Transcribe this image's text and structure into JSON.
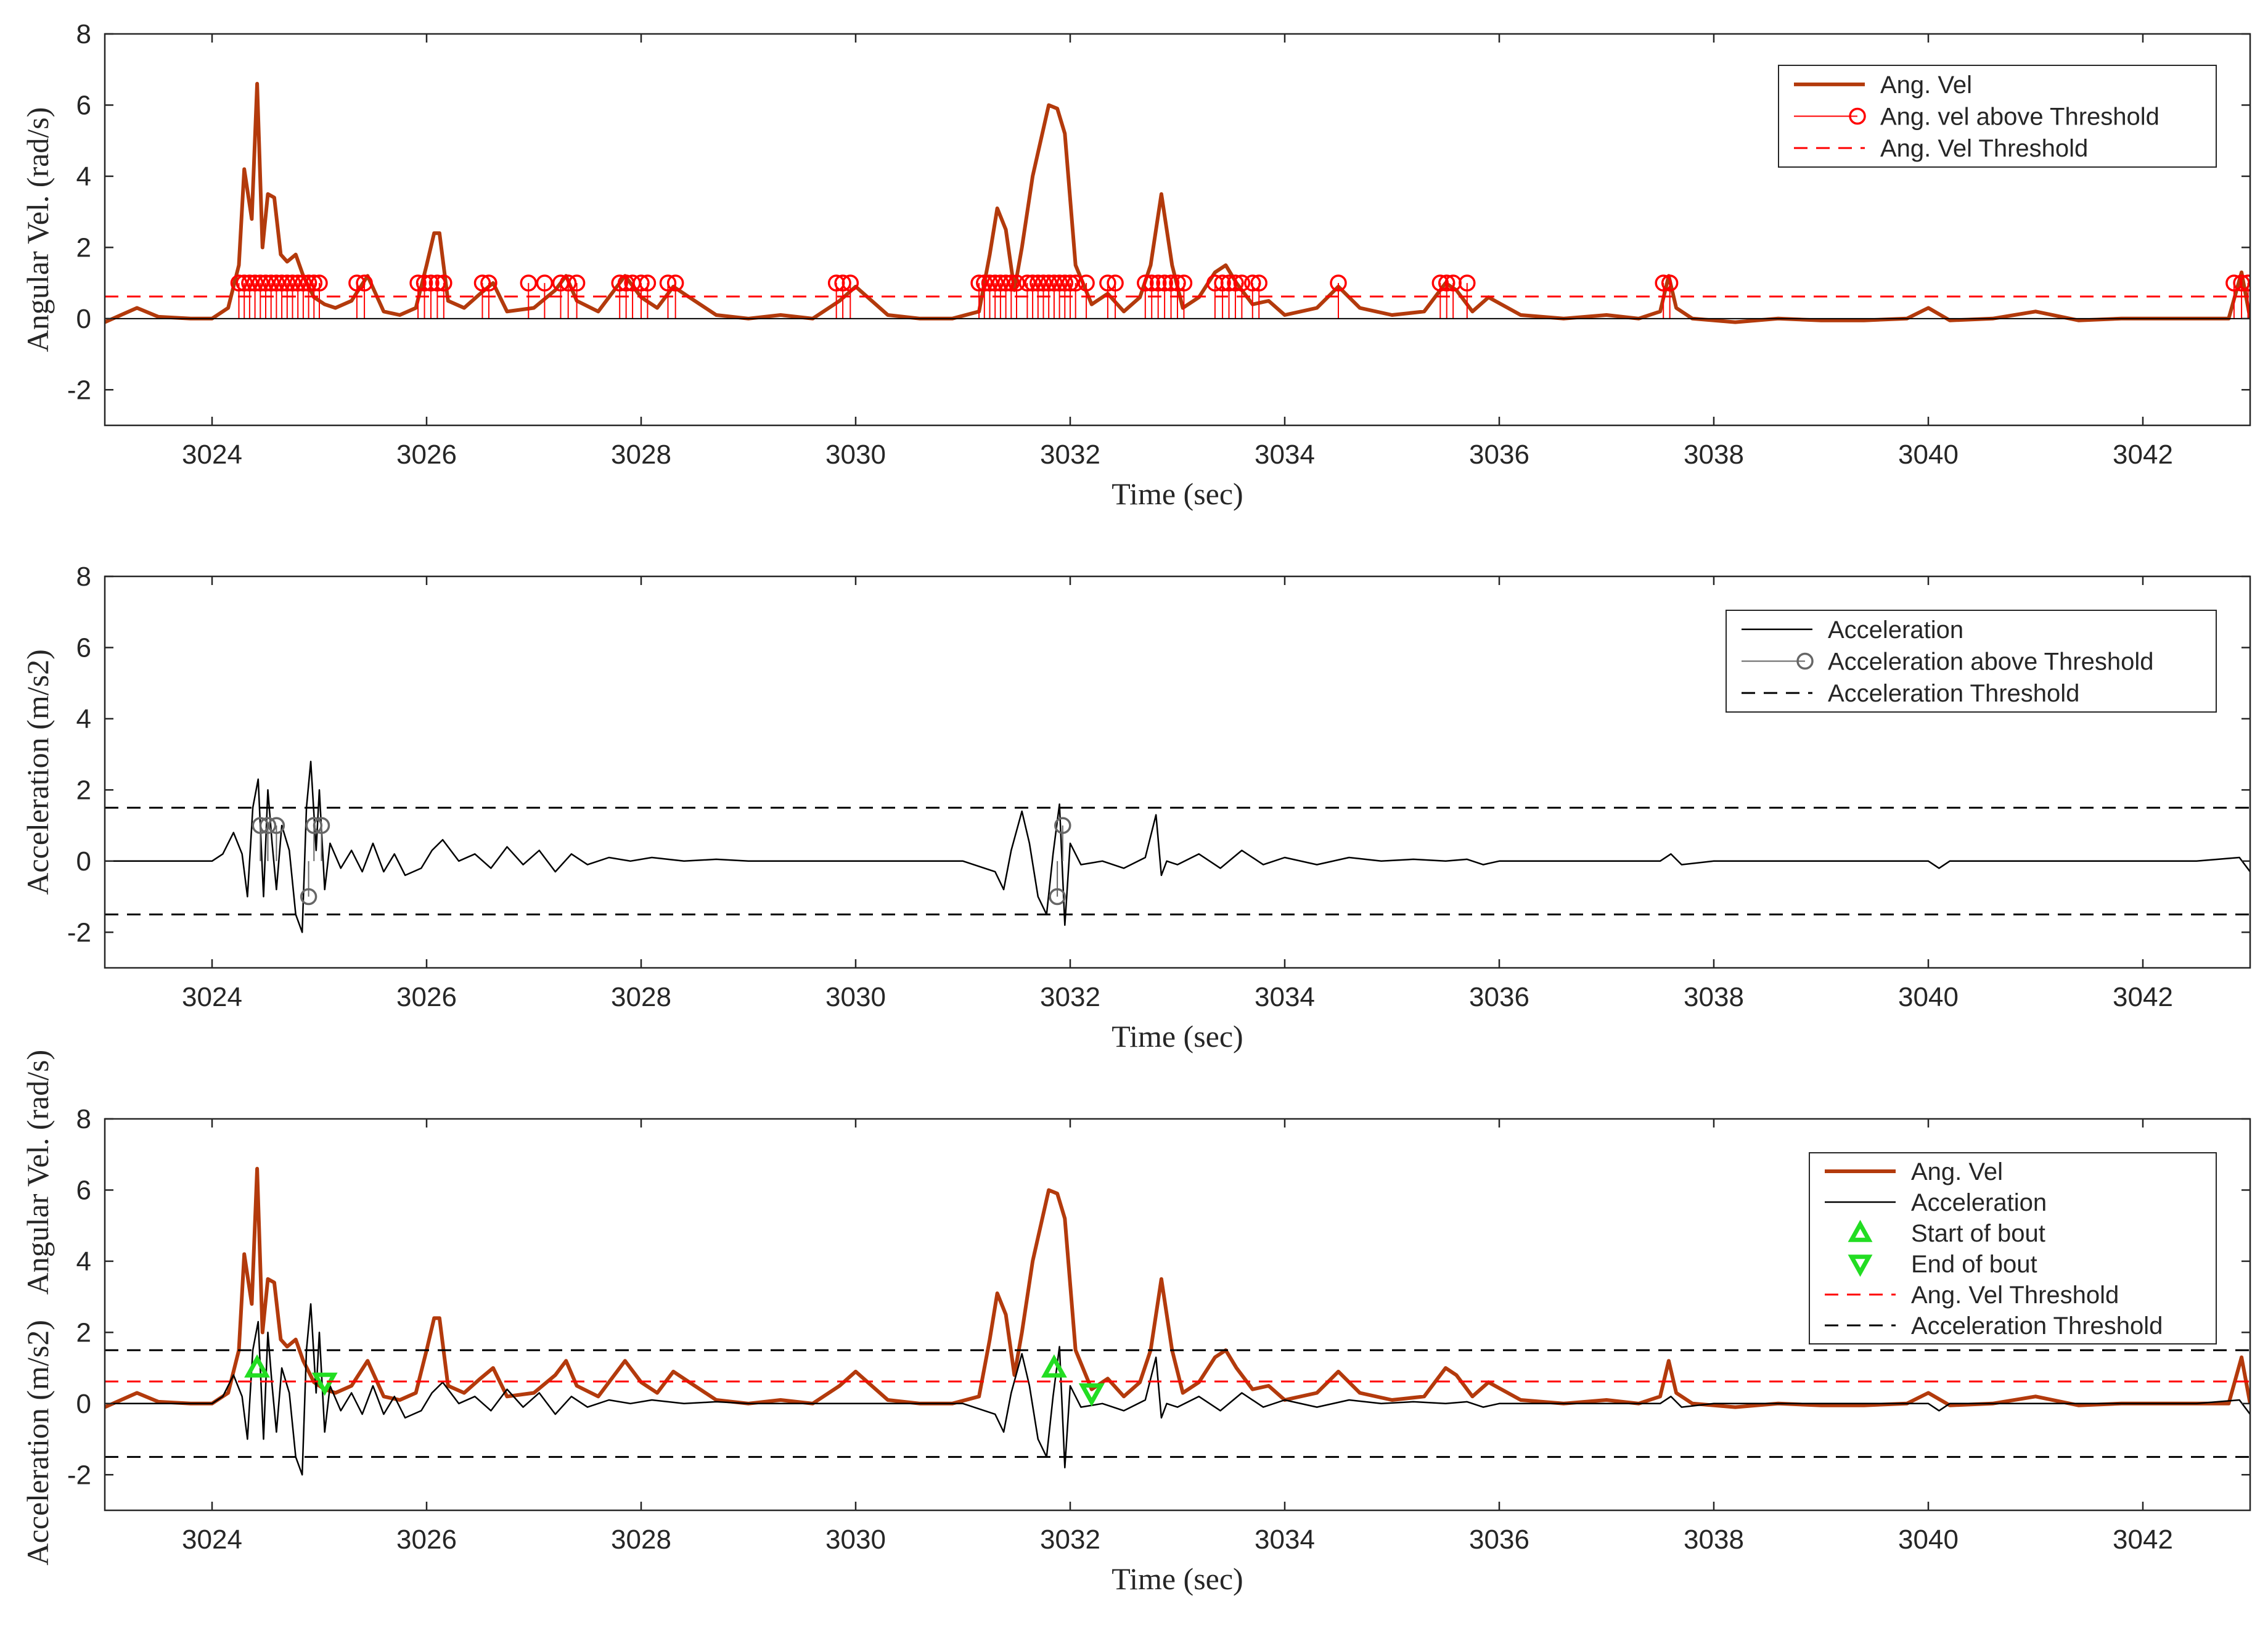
{
  "chart_data": [
    {
      "type": "line",
      "xlabel": "Time (sec)",
      "ylabel": "Angular Vel. (rad/s)",
      "xlim": [
        3023,
        3043
      ],
      "ylim": [
        -3,
        8
      ],
      "xticks": [
        3024,
        3026,
        3028,
        3030,
        3032,
        3034,
        3036,
        3038,
        3040,
        3042
      ],
      "yticks": [
        -2,
        0,
        2,
        4,
        6,
        8
      ],
      "legend_position": "top-right",
      "series": [
        {
          "name": "Ang. Vel",
          "color": "#b33a0c",
          "style": "solid-thick",
          "x": [
            3023,
            3023.3,
            3023.5,
            3023.8,
            3024.0,
            3024.15,
            3024.25,
            3024.3,
            3024.37,
            3024.42,
            3024.47,
            3024.52,
            3024.58,
            3024.64,
            3024.7,
            3024.78,
            3024.85,
            3024.95,
            3025.05,
            3025.15,
            3025.3,
            3025.45,
            3025.6,
            3025.75,
            3025.9,
            3026.0,
            3026.07,
            3026.12,
            3026.2,
            3026.35,
            3026.5,
            3026.62,
            3026.75,
            3027.0,
            3027.2,
            3027.3,
            3027.4,
            3027.6,
            3027.85,
            3028.0,
            3028.15,
            3028.3,
            3028.45,
            3028.7,
            3029.0,
            3029.3,
            3029.6,
            3029.85,
            3030.0,
            3030.3,
            3030.6,
            3030.9,
            3031.15,
            3031.25,
            3031.32,
            3031.4,
            3031.48,
            3031.55,
            3031.65,
            3031.8,
            3031.88,
            3031.95,
            3032.05,
            3032.2,
            3032.35,
            3032.5,
            3032.65,
            3032.75,
            3032.85,
            3032.95,
            3033.05,
            3033.2,
            3033.35,
            3033.45,
            3033.55,
            3033.7,
            3033.85,
            3034.0,
            3034.3,
            3034.5,
            3034.7,
            3035.0,
            3035.3,
            3035.5,
            3035.6,
            3035.75,
            3035.9,
            3036.2,
            3036.6,
            3037.0,
            3037.3,
            3037.5,
            3037.58,
            3037.65,
            3037.8,
            3038.2,
            3038.6,
            3039.0,
            3039.4,
            3039.8,
            3040.0,
            3040.2,
            3040.6,
            3041.0,
            3041.4,
            3041.8,
            3042.2,
            3042.6,
            3042.8,
            3042.92,
            3043.0
          ],
          "y": [
            -0.1,
            0.3,
            0.05,
            0.0,
            0.0,
            0.3,
            1.5,
            4.2,
            2.8,
            6.6,
            2.0,
            3.5,
            3.4,
            1.8,
            1.6,
            1.8,
            1.2,
            0.6,
            0.4,
            0.3,
            0.5,
            1.2,
            0.2,
            0.1,
            0.3,
            1.5,
            2.4,
            2.4,
            0.5,
            0.3,
            0.7,
            1.0,
            0.2,
            0.3,
            0.8,
            1.2,
            0.5,
            0.2,
            1.2,
            0.6,
            0.3,
            0.9,
            0.6,
            0.1,
            0.0,
            0.1,
            0.0,
            0.5,
            0.9,
            0.1,
            0.0,
            0.0,
            0.2,
            1.8,
            3.1,
            2.5,
            0.8,
            2.0,
            4.0,
            6.0,
            5.9,
            5.2,
            1.5,
            0.4,
            0.7,
            0.2,
            0.6,
            1.5,
            3.5,
            1.5,
            0.3,
            0.6,
            1.3,
            1.5,
            1.0,
            0.4,
            0.5,
            0.1,
            0.3,
            0.9,
            0.3,
            0.1,
            0.2,
            1.0,
            0.8,
            0.2,
            0.6,
            0.1,
            0.0,
            0.1,
            0.0,
            0.2,
            1.2,
            0.3,
            0.0,
            -0.1,
            0.0,
            -0.05,
            -0.05,
            0.0,
            0.3,
            -0.05,
            0.0,
            0.2,
            -0.05,
            0.0,
            0.0,
            0.0,
            0.0,
            1.3,
            0.0
          ]
        },
        {
          "name": "Ang. vel above Threshold",
          "color": "#ff0000",
          "style": "stem-circle",
          "x": [
            3024.25,
            3024.3,
            3024.35,
            3024.4,
            3024.45,
            3024.5,
            3024.55,
            3024.6,
            3024.65,
            3024.7,
            3024.75,
            3024.8,
            3024.85,
            3024.9,
            3024.95,
            3025.0,
            3025.35,
            3025.42,
            3025.92,
            3025.98,
            3026.04,
            3026.1,
            3026.16,
            3026.52,
            3026.58,
            3026.95,
            3027.1,
            3027.25,
            3027.32,
            3027.4,
            3027.8,
            3027.86,
            3027.92,
            3028.0,
            3028.06,
            3028.25,
            3028.32,
            3029.82,
            3029.88,
            3029.95,
            3031.15,
            3031.2,
            3031.25,
            3031.3,
            3031.35,
            3031.4,
            3031.45,
            3031.5,
            3031.6,
            3031.65,
            3031.7,
            3031.75,
            3031.8,
            3031.85,
            3031.9,
            3031.95,
            3032.0,
            3032.05,
            3032.15,
            3032.35,
            3032.42,
            3032.7,
            3032.76,
            3032.82,
            3032.88,
            3032.94,
            3033.0,
            3033.06,
            3033.35,
            3033.42,
            3033.48,
            3033.54,
            3033.6,
            3033.7,
            3033.76,
            3034.5,
            3035.45,
            3035.51,
            3035.57,
            3035.7,
            3037.53,
            3037.59,
            3042.85,
            3042.92,
            3042.98
          ],
          "y": [
            1,
            1,
            1,
            1,
            1,
            1,
            1,
            1,
            1,
            1,
            1,
            1,
            1,
            1,
            1,
            1,
            1,
            1,
            1,
            1,
            1,
            1,
            1,
            1,
            1,
            1,
            1,
            1,
            1,
            1,
            1,
            1,
            1,
            1,
            1,
            1,
            1,
            1,
            1,
            1,
            1,
            1,
            1,
            1,
            1,
            1,
            1,
            1,
            1,
            1,
            1,
            1,
            1,
            1,
            1,
            1,
            1,
            1,
            1,
            1,
            1,
            1,
            1,
            1,
            1,
            1,
            1,
            1,
            1,
            1,
            1,
            1,
            1,
            1,
            1,
            1,
            1,
            1,
            1,
            1,
            1,
            1,
            1,
            1,
            1
          ]
        },
        {
          "name": "Ang. Vel Threshold",
          "color": "#ff0000",
          "style": "dashed",
          "y": 0.62
        },
        {
          "name": "",
          "color": "#000000",
          "style": "thin-baseline",
          "y": 0
        }
      ]
    },
    {
      "type": "line",
      "xlabel": "Time (sec)",
      "ylabel": "Acceleration (m/s2)",
      "xlim": [
        3023,
        3043
      ],
      "ylim": [
        -3,
        8
      ],
      "xticks": [
        3024,
        3026,
        3028,
        3030,
        3032,
        3034,
        3036,
        3038,
        3040,
        3042
      ],
      "yticks": [
        -2,
        0,
        2,
        4,
        6,
        8
      ],
      "legend_position": "top-right",
      "series": [
        {
          "name": "Acceleration",
          "color": "#000000",
          "style": "solid-thin",
          "x": [
            3023,
            3023.5,
            3024.0,
            3024.1,
            3024.2,
            3024.28,
            3024.33,
            3024.38,
            3024.43,
            3024.48,
            3024.52,
            3024.56,
            3024.6,
            3024.65,
            3024.72,
            3024.78,
            3024.84,
            3024.88,
            3024.92,
            3024.97,
            3025.0,
            3025.05,
            3025.1,
            3025.2,
            3025.3,
            3025.4,
            3025.5,
            3025.6,
            3025.7,
            3025.8,
            3025.95,
            3026.05,
            3026.15,
            3026.3,
            3026.45,
            3026.6,
            3026.75,
            3026.9,
            3027.05,
            3027.2,
            3027.35,
            3027.5,
            3027.7,
            3027.9,
            3028.1,
            3028.4,
            3028.7,
            3029.0,
            3029.5,
            3030.0,
            3030.5,
            3031.0,
            3031.3,
            3031.38,
            3031.45,
            3031.55,
            3031.62,
            3031.7,
            3031.78,
            3031.84,
            3031.9,
            3031.95,
            3032.0,
            3032.1,
            3032.3,
            3032.5,
            3032.7,
            3032.8,
            3032.85,
            3032.9,
            3033.0,
            3033.2,
            3033.4,
            3033.6,
            3033.8,
            3034.0,
            3034.3,
            3034.6,
            3034.9,
            3035.2,
            3035.5,
            3035.7,
            3035.85,
            3036.0,
            3036.5,
            3037.0,
            3037.5,
            3037.6,
            3037.7,
            3038.0,
            3038.5,
            3039.0,
            3039.5,
            3040.0,
            3040.1,
            3040.2,
            3040.6,
            3041.0,
            3041.5,
            3042.0,
            3042.5,
            3042.9,
            3043.0
          ],
          "y": [
            0.0,
            0.0,
            0.0,
            0.2,
            0.8,
            0.2,
            -1.0,
            1.5,
            2.3,
            -1.0,
            2.0,
            0.5,
            -0.8,
            1.0,
            0.3,
            -1.5,
            -2.0,
            1.5,
            2.8,
            0.3,
            2.0,
            -0.8,
            0.5,
            -0.2,
            0.3,
            -0.3,
            0.5,
            -0.3,
            0.2,
            -0.4,
            -0.2,
            0.3,
            0.6,
            0.0,
            0.2,
            -0.2,
            0.4,
            -0.1,
            0.3,
            -0.3,
            0.2,
            -0.1,
            0.1,
            0.0,
            0.1,
            0.0,
            0.05,
            0.0,
            0.0,
            0.0,
            0.0,
            0.0,
            -0.3,
            -0.8,
            0.3,
            1.4,
            0.5,
            -1.0,
            -1.5,
            0.2,
            1.6,
            -1.8,
            0.5,
            -0.1,
            0.0,
            -0.2,
            0.1,
            1.3,
            -0.4,
            0.0,
            -0.1,
            0.2,
            -0.2,
            0.3,
            -0.1,
            0.1,
            -0.1,
            0.1,
            0.0,
            0.05,
            0.0,
            0.05,
            -0.1,
            0.0,
            0.0,
            0.0,
            0.0,
            0.2,
            -0.1,
            0.0,
            0.0,
            0.0,
            0.0,
            0.0,
            -0.2,
            0.0,
            0.0,
            0.0,
            0.0,
            0.0,
            0.0,
            0.1,
            -0.3
          ]
        },
        {
          "name": "Acceleration above Threshold",
          "color": "#666666",
          "style": "stem-circle",
          "x": [
            3024.45,
            3024.52,
            3024.6,
            3024.9,
            3024.95,
            3025.02,
            3031.88,
            3031.93
          ],
          "y": [
            1,
            1,
            1,
            -1,
            1,
            1,
            -1,
            1
          ]
        },
        {
          "name": "Acceleration Threshold",
          "color": "#000000",
          "style": "dashed",
          "y": 1.5
        },
        {
          "name": "",
          "color": "#000000",
          "style": "dashed",
          "y": -1.5
        }
      ]
    },
    {
      "type": "line",
      "xlabel": "Time (sec)",
      "ylabel": "Acceleration (m/s2)",
      "ylabel2": "Angular Vel. (rad/s)",
      "xlim": [
        3023,
        3043
      ],
      "ylim": [
        -3,
        8
      ],
      "xticks": [
        3024,
        3026,
        3028,
        3030,
        3032,
        3034,
        3036,
        3038,
        3040,
        3042
      ],
      "yticks": [
        -2,
        0,
        2,
        4,
        6,
        8
      ],
      "legend_position": "top-right",
      "series": [
        {
          "name": "Ang. Vel",
          "color": "#b33a0c",
          "style": "solid-thick",
          "ref": "ang_vel"
        },
        {
          "name": "Acceleration",
          "color": "#000000",
          "style": "solid-thin",
          "ref": "accel"
        },
        {
          "name": "Start of bout",
          "color": "#22dd22",
          "style": "triangle-up",
          "x": [
            3024.42,
            3031.85
          ],
          "y": [
            1.0,
            1.0
          ]
        },
        {
          "name": "End of bout",
          "color": "#22dd22",
          "style": "triangle-down",
          "x": [
            3025.05,
            3032.2
          ],
          "y": [
            0.6,
            0.3
          ]
        },
        {
          "name": "Ang. Vel Threshold",
          "color": "#ff0000",
          "style": "dashed",
          "y": 0.62
        },
        {
          "name": "Acceleration Threshold",
          "color": "#000000",
          "style": "dashed",
          "y": 1.5
        },
        {
          "name": "",
          "color": "#000000",
          "style": "dashed",
          "y": -1.5
        }
      ]
    }
  ]
}
